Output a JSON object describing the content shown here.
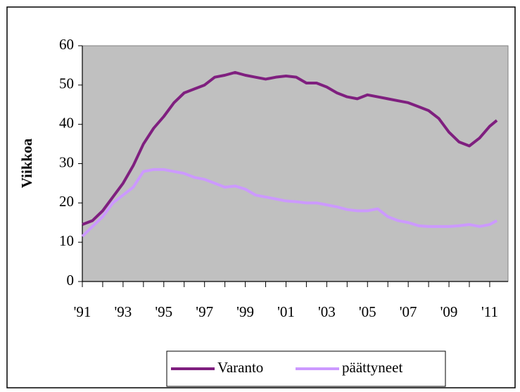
{
  "chart_data": {
    "type": "line",
    "ylabel": "Viikkoa",
    "x": [
      1991,
      1991.5,
      1992,
      1992.5,
      1993,
      1993.5,
      1994,
      1994.5,
      1995,
      1995.5,
      1996,
      1996.5,
      1997,
      1997.5,
      1998,
      1998.5,
      1999,
      1999.5,
      2000,
      2000.5,
      2001,
      2001.5,
      2002,
      2002.5,
      2003,
      2003.5,
      2004,
      2004.5,
      2005,
      2005.5,
      2006,
      2006.5,
      2007,
      2007.5,
      2008,
      2008.5,
      2009,
      2009.5,
      2010,
      2010.5,
      2011,
      2011.35
    ],
    "series": [
      {
        "name": "Varanto",
        "color": "#7f1f7f",
        "values": [
          14.5,
          15.5,
          18,
          21.5,
          25,
          29.5,
          35,
          39,
          42,
          45.5,
          48,
          49,
          50,
          52,
          52.5,
          53.2,
          52.5,
          52,
          51.5,
          52,
          52.3,
          52,
          50.5,
          50.5,
          49.5,
          48,
          47,
          46.5,
          47.5,
          47,
          46.5,
          46,
          45.5,
          44.5,
          43.5,
          41.5,
          38,
          35.5,
          34.5,
          36.5,
          39.5,
          41
        ]
      },
      {
        "name": "päättyneet",
        "color": "#cc99ff",
        "values": [
          11.5,
          14,
          16.5,
          20,
          22,
          24,
          28,
          28.5,
          28.5,
          28,
          27.5,
          26.5,
          26,
          25,
          24,
          24.3,
          23.5,
          22,
          21.5,
          21,
          20.5,
          20.3,
          20,
          20,
          19.5,
          19,
          18.3,
          18,
          18,
          18.5,
          16.5,
          15.5,
          15,
          14.2,
          14,
          14,
          14,
          14.2,
          14.5,
          14,
          14.5,
          15.5
        ]
      }
    ],
    "xlim": [
      1991,
      2011.9
    ],
    "xticks": [
      {
        "value": 1991,
        "label": "'91"
      },
      {
        "value": 1993,
        "label": "'93"
      },
      {
        "value": 1995,
        "label": "'95"
      },
      {
        "value": 1997,
        "label": "'97"
      },
      {
        "value": 1999,
        "label": "'99"
      },
      {
        "value": 2001,
        "label": "'01"
      },
      {
        "value": 2003,
        "label": "'03"
      },
      {
        "value": 2005,
        "label": "'05"
      },
      {
        "value": 2007,
        "label": "'07"
      },
      {
        "value": 2009,
        "label": "'09"
      },
      {
        "value": 2011,
        "label": "'11"
      }
    ],
    "ylim": [
      0,
      60
    ],
    "yticks": [
      0,
      10,
      20,
      30,
      40,
      50,
      60
    ],
    "grid": false,
    "legend": "bottom"
  }
}
